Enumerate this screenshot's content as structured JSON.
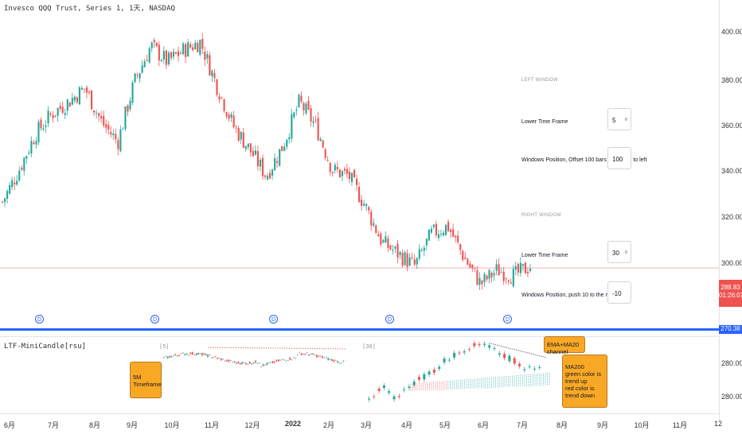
{
  "header": {
    "symbol_title": "Invesco QQQ Trust, Series 1, 1天, NASDAQ",
    "indicator_title": "LTF-MiniCandle[rsu]"
  },
  "price_axis": {
    "ticks": [
      "400.00",
      "380.00",
      "360.00",
      "340.00",
      "320.00",
      "300.00",
      "280.00",
      "280.00"
    ]
  },
  "price_badges": {
    "last_price": "288.83",
    "countdown": "01:26:07",
    "line_price": "270.38"
  },
  "time_axis": {
    "ticks": [
      "6月",
      "7月",
      "8月",
      "9月",
      "10月",
      "11月",
      "12月",
      "2022",
      "2月",
      "3月",
      "4月",
      "5月",
      "6月",
      "7月",
      "8月",
      "9月",
      "10月",
      "11月",
      "12"
    ]
  },
  "event_marker_label": "D",
  "settings": {
    "left_window_title": "LEFT WINDOW",
    "left_tf_label": "Lower Time Frame",
    "left_tf_value": "5",
    "left_offset_label": "Windows Position, Offset 100 bars from right to left",
    "left_offset_value": "100",
    "right_window_title": "RIGHT WINDOW",
    "right_tf_label": "Lower Time Frame",
    "right_tf_value": "30",
    "right_offset_label": "Windows Position, push 10 to the right",
    "right_offset_value": "-10"
  },
  "indicator": {
    "left_tf_tag": "[5]",
    "right_tf_tag": "[30]"
  },
  "annotations": {
    "five_min": "5M Timeframe",
    "ema_ma": "EMA+MA20 channel",
    "ma200_title": "MA200",
    "ma200_line1": "green color is trend up",
    "ma200_line2": "red color is trend down"
  },
  "colors": {
    "up": "#26a69a",
    "down": "#ef5350",
    "accent": "#2962ff",
    "callout": "#f9a825"
  },
  "chart_data": {
    "type": "candlestick",
    "xlabel": "",
    "ylabel": "",
    "ylim": [
      260,
      415
    ],
    "x": [
      "6月",
      "7月",
      "8月",
      "9月",
      "10月",
      "11月",
      "12月",
      "2022",
      "2月",
      "3月",
      "4月",
      "5月",
      "6月",
      "7月"
    ],
    "closes": [
      322,
      338,
      356,
      366,
      372,
      379,
      362,
      352,
      382,
      400,
      392,
      398,
      402,
      380,
      360,
      348,
      335,
      350,
      372,
      360,
      338,
      335,
      320,
      302,
      296,
      290,
      306,
      310,
      294,
      281,
      288,
      285,
      290
    ],
    "indicator_ylim": [
      275,
      298
    ],
    "indicator_ticks": [
      "280.00",
      "280.00"
    ]
  }
}
